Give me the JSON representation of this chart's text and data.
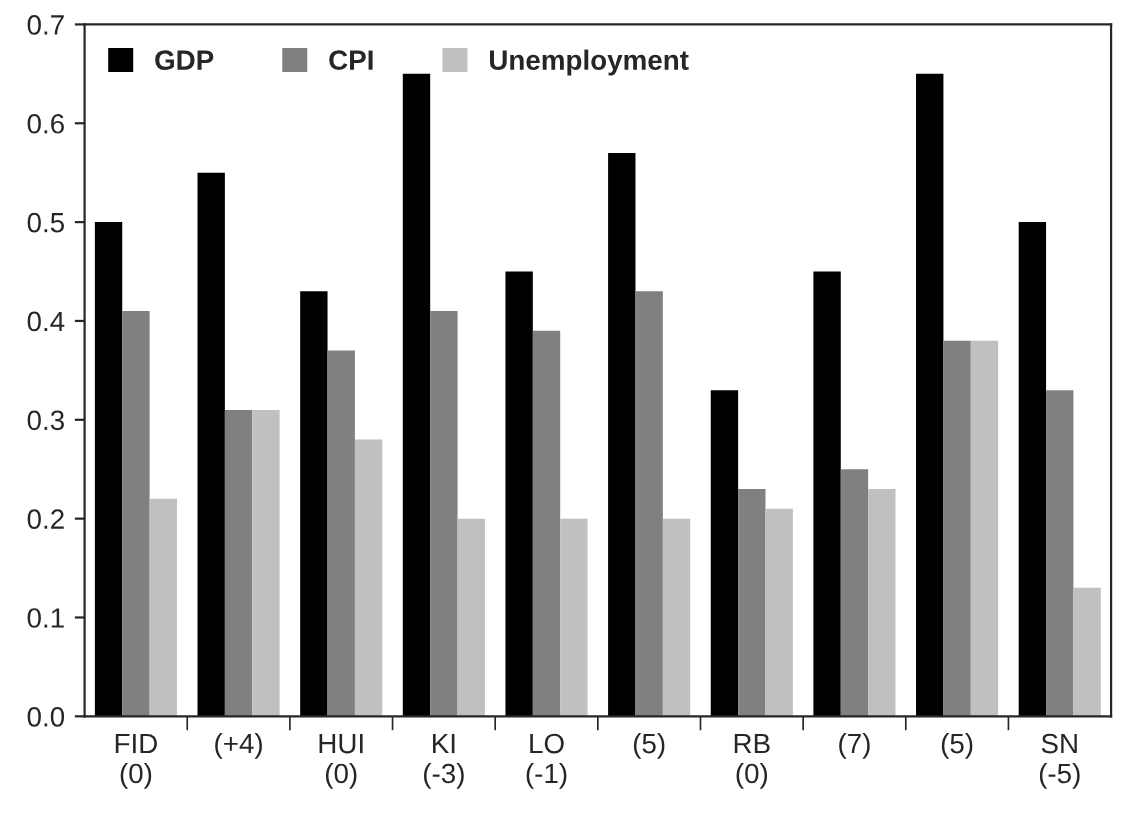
{
  "chart_data": {
    "type": "bar",
    "categories": [
      "FID\n(0)",
      "(+4)",
      "HUI\n(0)",
      "KI\n(-3)",
      "LO\n(-1)",
      "(5)",
      "RB\n(0)",
      "(7)",
      "(5)",
      "SN\n(-5)"
    ],
    "series": [
      {
        "name": "GDP",
        "color": "#000000",
        "values": [
          0.5,
          0.55,
          0.43,
          0.65,
          0.45,
          0.57,
          0.33,
          0.45,
          0.65,
          0.5
        ]
      },
      {
        "name": "CPI",
        "color": "#808080",
        "values": [
          0.41,
          0.31,
          0.37,
          0.41,
          0.39,
          0.43,
          0.23,
          0.25,
          0.38,
          0.33
        ]
      },
      {
        "name": "Unemployment",
        "color": "#c0c0c0",
        "values": [
          0.22,
          0.31,
          0.28,
          0.2,
          0.2,
          0.2,
          0.21,
          0.23,
          0.38,
          0.13
        ]
      }
    ],
    "ylim": [
      0,
      0.7
    ],
    "yticks": [
      {
        "value": 0,
        "label": "0.0"
      },
      {
        "value": 0.1,
        "label": "0.1"
      },
      {
        "value": 0.2,
        "label": "0.2"
      },
      {
        "value": 0.3,
        "label": "0.3"
      },
      {
        "value": 0.4,
        "label": "0.4"
      },
      {
        "value": 0.5,
        "label": "0.5"
      },
      {
        "value": 0.6,
        "label": "0.6"
      },
      {
        "value": 0.7,
        "label": "0.7"
      }
    ],
    "legend": "top left",
    "grid": false
  }
}
